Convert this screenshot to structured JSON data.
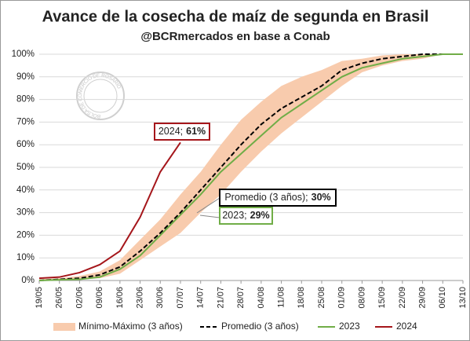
{
  "chart_data": {
    "type": "line",
    "title": "Avance de la cosecha de maíz de segunda en Brasil",
    "subtitle": "@BCRmercados en base a Conab",
    "watermark": "BOLSA DE COMERCIO DE ROSARIO",
    "categories": [
      "19/05",
      "26/05",
      "02/06",
      "09/06",
      "16/06",
      "23/06",
      "30/06",
      "07/07",
      "14/07",
      "21/07",
      "28/07",
      "04/08",
      "11/08",
      "18/08",
      "25/08",
      "01/09",
      "08/09",
      "15/09",
      "22/09",
      "29/09",
      "06/10",
      "13/10"
    ],
    "band": {
      "name": "Mínimo-Máximo (3 años)",
      "color": "#f8cbad",
      "min": [
        0,
        0,
        0.5,
        1,
        3,
        9,
        15,
        21,
        30,
        38,
        48,
        57,
        65,
        72,
        79,
        86,
        92,
        95,
        97,
        98,
        100,
        100
      ],
      "max": [
        0.5,
        1,
        2,
        4,
        9,
        18,
        27,
        38,
        48,
        60,
        71,
        79,
        86,
        90,
        93,
        97,
        98,
        99.5,
        100,
        100,
        100,
        100
      ]
    },
    "series": [
      {
        "name": "Promedio (3 años)",
        "color": "#000000",
        "dash": true,
        "values": [
          0,
          0.5,
          1,
          2.5,
          6,
          13,
          21,
          30,
          40,
          50,
          60,
          69,
          76,
          81,
          86,
          93,
          96,
          98,
          99,
          100,
          100,
          100
        ]
      },
      {
        "name": "2023",
        "color": "#70ad47",
        "dash": false,
        "values": [
          0,
          0.3,
          0.5,
          1.5,
          5,
          11,
          20,
          29,
          38,
          48,
          56,
          64,
          72,
          78,
          84,
          90,
          94,
          96,
          98,
          99,
          100,
          100
        ]
      },
      {
        "name": "2024",
        "color": "#a5161b",
        "dash": false,
        "values": [
          1,
          1.5,
          3.5,
          7,
          13,
          28,
          48,
          61,
          null,
          null,
          null,
          null,
          null,
          null,
          null,
          null,
          null,
          null,
          null,
          null,
          null,
          null
        ]
      }
    ],
    "annotations": [
      {
        "text": "2024;",
        "bold": "61%",
        "color": "#a5161b"
      },
      {
        "text": "Promedio (3 años);",
        "bold": "30%",
        "color": "#000000"
      },
      {
        "text": "2023;",
        "bold": "29%",
        "color": "#70ad47"
      }
    ],
    "ylim": [
      0,
      100
    ],
    "yticks": [
      {
        "value": 0,
        "label": "0%"
      },
      {
        "value": 10,
        "label": "10%"
      },
      {
        "value": 20,
        "label": "20%"
      },
      {
        "value": 30,
        "label": "30%"
      },
      {
        "value": 40,
        "label": "40%"
      },
      {
        "value": 50,
        "label": "50%"
      },
      {
        "value": 60,
        "label": "60%"
      },
      {
        "value": 70,
        "label": "70%"
      },
      {
        "value": 80,
        "label": "80%"
      },
      {
        "value": 90,
        "label": "90%"
      },
      {
        "value": 100,
        "label": "100%"
      }
    ],
    "grid": true
  }
}
